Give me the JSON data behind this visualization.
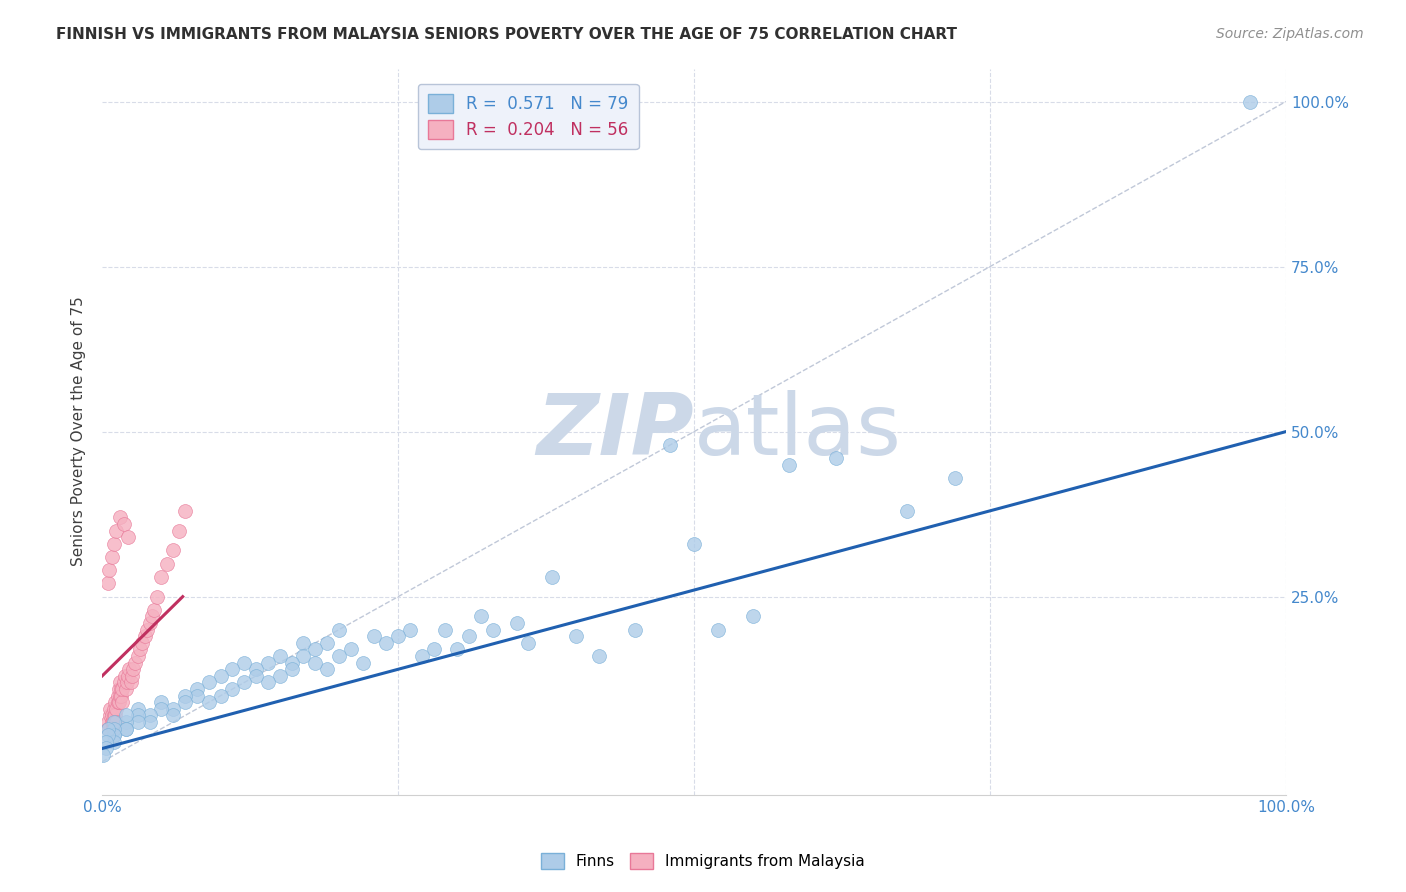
{
  "title": "FINNISH VS IMMIGRANTS FROM MALAYSIA SENIORS POVERTY OVER THE AGE OF 75 CORRELATION CHART",
  "source": "Source: ZipAtlas.com",
  "ylabel": "Seniors Poverty Over the Age of 75",
  "xlim": [
    0,
    1.0
  ],
  "ylim": [
    -0.05,
    1.05
  ],
  "finns_R": 0.571,
  "finns_N": 79,
  "malaysia_R": 0.204,
  "malaysia_N": 56,
  "finns_color": "#aecce8",
  "finns_edge_color": "#7ab0d8",
  "malaysia_color": "#f5b0c0",
  "malaysia_edge_color": "#e87898",
  "finns_line_color": "#2060b0",
  "malaysia_line_color": "#c03060",
  "diagonal_color": "#c0c8d8",
  "watermark_color": "#ccd8e8",
  "background_color": "#ffffff",
  "grid_color": "#d8dce8",
  "title_color": "#303030",
  "axis_label_color": "#404040",
  "tick_color": "#4488cc",
  "source_color": "#909090",
  "legend_face_color": "#eef2fa",
  "legend_edge_color": "#b8c4d8",
  "marker_size": 100,
  "line_width": 2.2,
  "finns_line_start_y": 0.02,
  "finns_line_end_y": 0.5,
  "malaysia_line_start_y": 0.13,
  "malaysia_line_end_y": 0.25,
  "finns_x": [
    0.97,
    0.72,
    0.68,
    0.62,
    0.58,
    0.55,
    0.52,
    0.5,
    0.48,
    0.45,
    0.42,
    0.4,
    0.38,
    0.36,
    0.35,
    0.33,
    0.32,
    0.31,
    0.3,
    0.29,
    0.28,
    0.27,
    0.26,
    0.25,
    0.24,
    0.23,
    0.22,
    0.21,
    0.2,
    0.2,
    0.19,
    0.19,
    0.18,
    0.18,
    0.17,
    0.17,
    0.16,
    0.16,
    0.15,
    0.15,
    0.14,
    0.14,
    0.13,
    0.13,
    0.12,
    0.12,
    0.11,
    0.11,
    0.1,
    0.1,
    0.09,
    0.09,
    0.08,
    0.08,
    0.07,
    0.07,
    0.06,
    0.06,
    0.05,
    0.05,
    0.04,
    0.04,
    0.03,
    0.03,
    0.03,
    0.02,
    0.02,
    0.02,
    0.02,
    0.01,
    0.01,
    0.01,
    0.01,
    0.01,
    0.005,
    0.005,
    0.003,
    0.003,
    0.001
  ],
  "finns_y": [
    1.0,
    0.43,
    0.38,
    0.46,
    0.45,
    0.22,
    0.2,
    0.33,
    0.48,
    0.2,
    0.16,
    0.19,
    0.28,
    0.18,
    0.21,
    0.2,
    0.22,
    0.19,
    0.17,
    0.2,
    0.17,
    0.16,
    0.2,
    0.19,
    0.18,
    0.19,
    0.15,
    0.17,
    0.2,
    0.16,
    0.18,
    0.14,
    0.17,
    0.15,
    0.18,
    0.16,
    0.15,
    0.14,
    0.13,
    0.16,
    0.15,
    0.12,
    0.14,
    0.13,
    0.12,
    0.15,
    0.14,
    0.11,
    0.13,
    0.1,
    0.12,
    0.09,
    0.11,
    0.1,
    0.1,
    0.09,
    0.08,
    0.07,
    0.09,
    0.08,
    0.07,
    0.06,
    0.08,
    0.07,
    0.06,
    0.06,
    0.05,
    0.07,
    0.05,
    0.06,
    0.04,
    0.05,
    0.04,
    0.03,
    0.05,
    0.04,
    0.03,
    0.02,
    0.01
  ],
  "malaysia_x": [
    0.005,
    0.005,
    0.007,
    0.007,
    0.008,
    0.008,
    0.009,
    0.009,
    0.01,
    0.01,
    0.011,
    0.011,
    0.012,
    0.012,
    0.013,
    0.013,
    0.014,
    0.014,
    0.015,
    0.015,
    0.016,
    0.016,
    0.017,
    0.017,
    0.018,
    0.019,
    0.02,
    0.021,
    0.022,
    0.023,
    0.024,
    0.025,
    0.026,
    0.028,
    0.03,
    0.032,
    0.034,
    0.036,
    0.038,
    0.04,
    0.042,
    0.044,
    0.046,
    0.05,
    0.055,
    0.06,
    0.065,
    0.07,
    0.005,
    0.006,
    0.008,
    0.01,
    0.012,
    0.015,
    0.018,
    0.022
  ],
  "malaysia_y": [
    0.06,
    0.05,
    0.07,
    0.08,
    0.06,
    0.07,
    0.06,
    0.05,
    0.07,
    0.08,
    0.09,
    0.07,
    0.08,
    0.06,
    0.09,
    0.1,
    0.11,
    0.09,
    0.1,
    0.12,
    0.11,
    0.1,
    0.09,
    0.11,
    0.12,
    0.13,
    0.11,
    0.12,
    0.13,
    0.14,
    0.12,
    0.13,
    0.14,
    0.15,
    0.16,
    0.17,
    0.18,
    0.19,
    0.2,
    0.21,
    0.22,
    0.23,
    0.25,
    0.28,
    0.3,
    0.32,
    0.35,
    0.38,
    0.27,
    0.29,
    0.31,
    0.33,
    0.35,
    0.37,
    0.36,
    0.34
  ]
}
